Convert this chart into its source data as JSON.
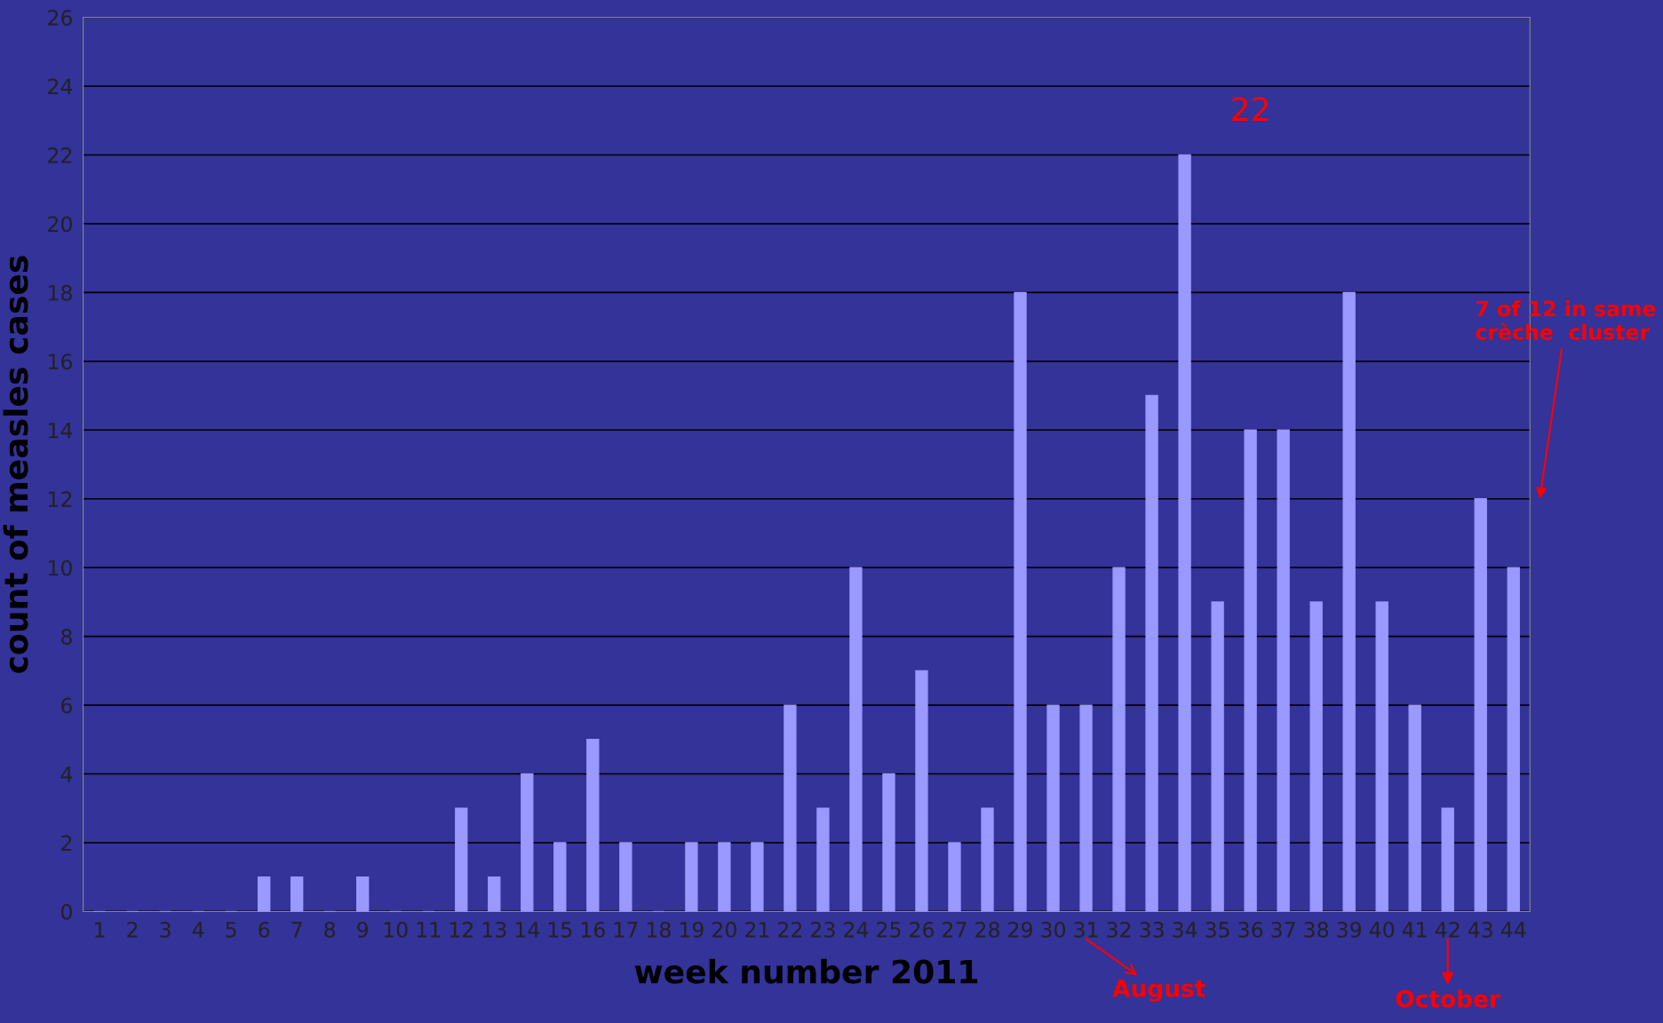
{
  "chart_data": {
    "type": "bar",
    "xlabel": "week number 2011",
    "ylabel": "count of measles cases",
    "categories": [
      "1",
      "2",
      "3",
      "4",
      "5",
      "6",
      "7",
      "8",
      "9",
      "10",
      "11",
      "12",
      "13",
      "14",
      "15",
      "16",
      "17",
      "18",
      "19",
      "20",
      "21",
      "22",
      "23",
      "24",
      "25",
      "26",
      "27",
      "28",
      "29",
      "30",
      "31",
      "32",
      "33",
      "34",
      "35",
      "36",
      "37",
      "38",
      "39",
      "40",
      "41",
      "42",
      "43",
      "44"
    ],
    "values": [
      0,
      0,
      0,
      0,
      0,
      1,
      1,
      0,
      1,
      0,
      0,
      3,
      1,
      4,
      2,
      5,
      2,
      0,
      2,
      2,
      2,
      6,
      3,
      10,
      4,
      7,
      2,
      3,
      18,
      6,
      6,
      10,
      15,
      22,
      9,
      14,
      14,
      9,
      18,
      9,
      6,
      3,
      12,
      10
    ],
    "color": "#9999ff",
    "ylim": [
      0,
      26
    ],
    "yticks": [
      0,
      2,
      4,
      6,
      8,
      10,
      12,
      14,
      16,
      18,
      20,
      22,
      24,
      26
    ],
    "grid": "y",
    "annotations": [
      "22",
      "7 of 12 in same\ncrèche  cluster",
      "August",
      "October"
    ]
  }
}
